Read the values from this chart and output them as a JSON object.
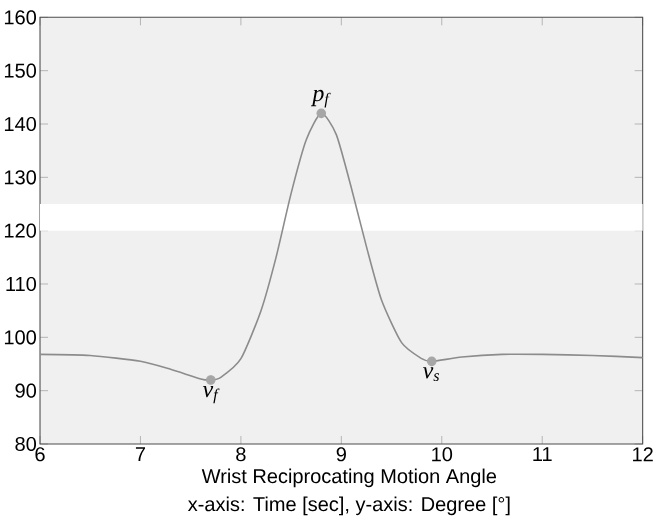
{
  "chart_data": {
    "type": "line",
    "title": "Wrist Reciprocating Motion Angle",
    "subtitle": "x-axis: Time [sec], y-axis: Degree [°]",
    "series": [
      {
        "color": "#8c8c8c",
        "x": [
          6,
          6.5,
          7,
          7.3,
          7.6,
          7.7,
          7.8,
          8.0,
          8.2,
          8.35,
          8.5,
          8.65,
          8.8,
          8.95,
          9.1,
          9.25,
          9.4,
          9.6,
          9.8,
          9.9,
          10.2,
          10.6,
          11,
          11.5,
          12
        ],
        "values": [
          96.8,
          96.6,
          95.5,
          94,
          92.2,
          92,
          92.5,
          96,
          105,
          115,
          127,
          137,
          142,
          138,
          128,
          117,
          107,
          99,
          96,
          95.5,
          96.3,
          96.8,
          96.8,
          96.6,
          96.2
        ]
      },
      {
        "type": "scatter",
        "color": "#a6a6a6",
        "marker": "circle",
        "x": [
          7.7,
          8.8,
          9.9
        ],
        "values": [
          92,
          142,
          95.5
        ]
      }
    ],
    "annotations": [
      {
        "text": "*v*$_{f}$",
        "x": 7.7,
        "y": 92
      },
      {
        "text": "*p*$_{f}$",
        "x": 8.8,
        "y": 142
      },
      {
        "text": "*v*$_{s}$",
        "x": 9.9,
        "y": 95.5
      }
    ],
    "bands": [
      {
        "axis": "y",
        "from": 120,
        "to": 125,
        "color": "#ffffff"
      }
    ],
    "xlim": [
      6,
      12
    ],
    "ylim": [
      80,
      160
    ],
    "xticks": [
      6,
      7,
      8,
      9,
      10,
      11,
      12
    ],
    "yticks": [
      80,
      90,
      100,
      110,
      120,
      130,
      140,
      150,
      160
    ],
    "grid": false,
    "marker": "none",
    "line_style": "solid"
  }
}
